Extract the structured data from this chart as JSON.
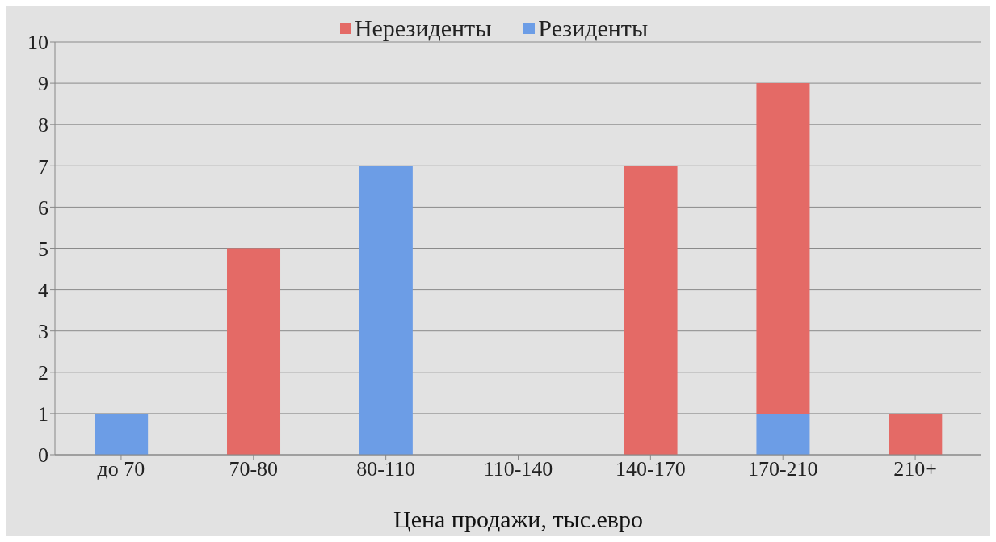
{
  "chart_data": {
    "type": "bar",
    "stacked": true,
    "xlabel": "Цена продажи, тыс.евро",
    "categories": [
      "до 70",
      "70-80",
      "80-110",
      "110-140",
      "140-170",
      "170-210",
      "210+"
    ],
    "series": [
      {
        "name": "Резиденты",
        "color": "#6c9de6",
        "values": [
          1,
          0,
          7,
          0,
          0,
          1,
          0
        ]
      },
      {
        "name": "Нерезиденты",
        "color": "#e46a66",
        "values": [
          0,
          5,
          0,
          0,
          7,
          8,
          1
        ]
      }
    ],
    "ylim": [
      0,
      10
    ],
    "yticks": [
      0,
      1,
      2,
      3,
      4,
      5,
      6,
      7,
      8,
      9,
      10
    ],
    "grid": "y",
    "legend": "top"
  }
}
